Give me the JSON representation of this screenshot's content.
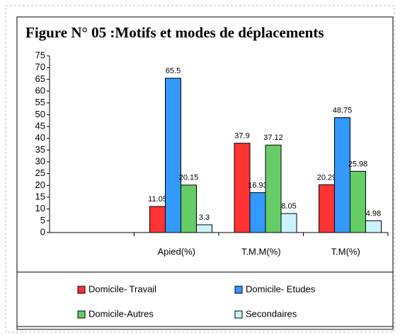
{
  "chart_data": {
    "type": "bar",
    "title": "Figure N° 05 :Motifs et modes de déplacements",
    "categories": [
      null,
      "Apied(%)",
      "T.M.M(%)",
      "T.M(%)"
    ],
    "series": [
      {
        "name": "Domicile- Travail",
        "color": "#ff3333",
        "values": [
          null,
          11.05,
          37.9,
          20.29
        ]
      },
      {
        "name": "Domicile- Etudes",
        "color": "#3399ff",
        "values": [
          null,
          65.5,
          16.93,
          48.75
        ]
      },
      {
        "name": "Domicile-Autres",
        "color": "#66cc66",
        "values": [
          null,
          20.15,
          37.12,
          25.98
        ]
      },
      {
        "name": "Secondaires",
        "color": "#ccf2ff",
        "values": [
          null,
          3.3,
          8.05,
          4.98
        ]
      }
    ],
    "ylim": [
      0,
      75
    ],
    "yticks": [
      0,
      5,
      10,
      15,
      20,
      25,
      30,
      35,
      40,
      45,
      50,
      55,
      60,
      65,
      70,
      75
    ],
    "grid": false,
    "legend": "bottom"
  }
}
